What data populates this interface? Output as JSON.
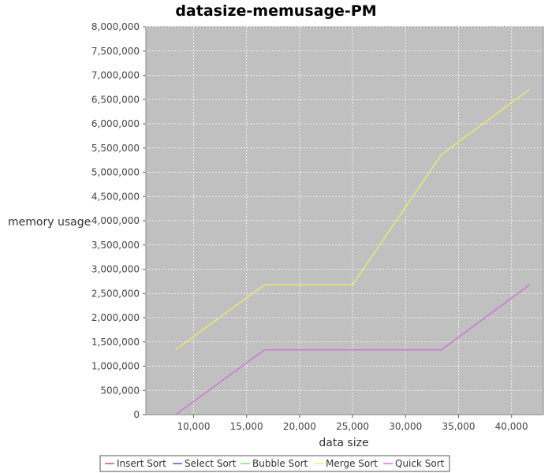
{
  "chart_data": {
    "type": "line",
    "title": "datasize-memusage-PM",
    "xlabel": "data size",
    "ylabel": "memory usage",
    "xlim": [
      5500,
      43000
    ],
    "ylim": [
      0,
      8000000
    ],
    "x_ticks": [
      10000,
      15000,
      20000,
      25000,
      30000,
      35000,
      40000
    ],
    "x_tick_labels": [
      "10,000",
      "15,000",
      "20,000",
      "25,000",
      "30,000",
      "35,000",
      "40,000"
    ],
    "y_ticks": [
      0,
      500000,
      1000000,
      1500000,
      2000000,
      2500000,
      3000000,
      3500000,
      4000000,
      4500000,
      5000000,
      5500000,
      6000000,
      6500000,
      7000000,
      7500000,
      8000000
    ],
    "y_tick_labels": [
      "0",
      "500,000",
      "1,000,000",
      "1,500,000",
      "2,000,000",
      "2,500,000",
      "3,000,000",
      "3,500,000",
      "4,000,000",
      "4,500,000",
      "5,000,000",
      "5,500,000",
      "6,000,000",
      "6,500,000",
      "7,000,000",
      "7,500,000",
      "8,000,000"
    ],
    "grid": true,
    "legend_position": "bottom",
    "plot_background": "#c0c0c0",
    "series": [
      {
        "name": "Insert Sort",
        "color": "#d0556f",
        "x": [
          8300,
          16700,
          25000,
          33400,
          41700
        ],
        "y": [
          0,
          1340000,
          1340000,
          1340000,
          2680000
        ]
      },
      {
        "name": "Select Sort",
        "color": "#5555c8",
        "x": [
          8300,
          16700,
          25000,
          33400,
          41700
        ],
        "y": [
          0,
          1340000,
          1340000,
          1340000,
          2680000
        ]
      },
      {
        "name": "Bubble Sort",
        "color": "#7ee07e",
        "x": [
          8300,
          16700,
          25000,
          33400,
          41700
        ],
        "y": [
          0,
          1340000,
          1340000,
          1340000,
          2680000
        ]
      },
      {
        "name": "Merge Sort",
        "color": "#f0f060",
        "x": [
          8300,
          16700,
          25000,
          33400,
          41700
        ],
        "y": [
          1340000,
          2680000,
          2680000,
          5370000,
          6710000
        ]
      },
      {
        "name": "Quick Sort",
        "color": "#e070e0",
        "x": [
          8300,
          16700,
          25000,
          33400,
          41700
        ],
        "y": [
          0,
          1340000,
          1340000,
          1340000,
          2680000
        ]
      }
    ]
  }
}
